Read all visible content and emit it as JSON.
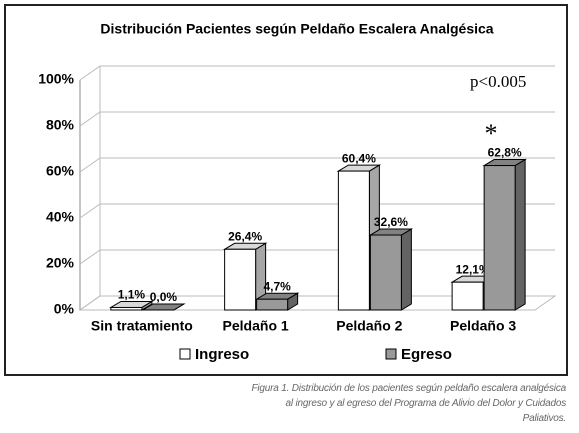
{
  "chart_data": {
    "type": "bar3d",
    "title": "Distribución Pacientes según Peldaño Escalera Analgésica",
    "categories": [
      "Sin tratamiento",
      "Peldaño 1",
      "Peldaño 2",
      "Peldaño 3"
    ],
    "series": [
      {
        "name": "Ingreso",
        "color": "#ffffff",
        "values": [
          1.1,
          26.4,
          60.4,
          12.1
        ],
        "value_labels": [
          "1,1%",
          "26,4%",
          "60,4%",
          "12,1%"
        ]
      },
      {
        "name": "Egreso",
        "color": "#999999",
        "values": [
          0.0,
          4.7,
          32.6,
          62.8
        ],
        "value_labels": [
          "0,0%",
          "4,7%",
          "32,6%",
          "62,8%"
        ]
      }
    ],
    "ylim": [
      0,
      100
    ],
    "yticks": [
      {
        "value": 0,
        "label": "0%"
      },
      {
        "value": 20,
        "label": "20%"
      },
      {
        "value": 40,
        "label": "40%"
      },
      {
        "value": 60,
        "label": "60%"
      },
      {
        "value": 80,
        "label": "80%"
      },
      {
        "value": 100,
        "label": "100%"
      }
    ],
    "grid": true,
    "annotations": [
      "p<0.005",
      "*"
    ]
  },
  "caption": "Figura 1. Distribución de los pacientes según peldaño escalera analgésica al ingreso y al egreso del Programa de Alivio del Dolor y Cuidados Paliativos."
}
